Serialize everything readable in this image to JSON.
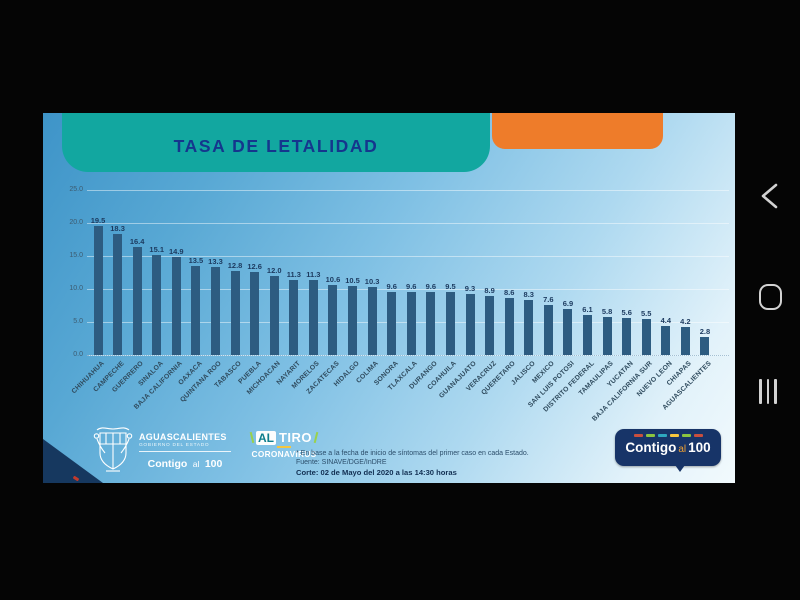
{
  "chart_data": {
    "type": "bar",
    "title": "TASA DE LETALIDAD",
    "xlabel": "",
    "ylabel": "",
    "ylim": [
      0,
      25
    ],
    "yticks": [
      0.0,
      5.0,
      10.0,
      15.0,
      20.0,
      25.0
    ],
    "grid": true,
    "legend": false,
    "bar_color": "#2d5c81",
    "categories": [
      "CHIHUAHUA",
      "CAMPECHE",
      "GUERRERO",
      "SINALOA",
      "BAJA CALIFORNIA",
      "OAXACA",
      "QUINTANA ROO",
      "TABASCO",
      "PUEBLA",
      "MICHOACAN",
      "NAYARIT",
      "MORELOS",
      "ZACATECAS",
      "HIDALGO",
      "COLIMA",
      "SONORA",
      "TLAXCALA",
      "DURANGO",
      "COAHUILA",
      "GUANAJUATO",
      "VERACRUZ",
      "QUERETARO",
      "JALISCO",
      "MEXICO",
      "SAN LUIS POTOSI",
      "DISTRITO FEDERAL",
      "TAMAULIPAS",
      "YUCATAN",
      "BAJA CALIFORNIA SUR",
      "NUEVO LEON",
      "CHIAPAS",
      "AGUASCALIENTES"
    ],
    "values": [
      19.5,
      18.3,
      16.4,
      15.1,
      14.9,
      13.5,
      13.3,
      12.8,
      12.6,
      12.0,
      11.3,
      11.3,
      10.6,
      10.5,
      10.3,
      9.6,
      9.6,
      9.6,
      9.5,
      9.3,
      8.9,
      8.6,
      8.3,
      7.6,
      6.9,
      6.1,
      5.8,
      5.6,
      5.5,
      4.4,
      4.2,
      2.8
    ]
  },
  "slide": {
    "footer": {
      "gov": {
        "name": "AGUASCALIENTES",
        "subtitle": "GOBIERNO DEL ESTADO",
        "slogan_contigo": "Contigo",
        "slogan_al": "al",
        "slogan_100": "100"
      },
      "altiro": {
        "al": "AL",
        "tiro": "TIRO",
        "line2": "CORONAVIRUS"
      },
      "note1": "* En base a la fecha de inicio de síntomas del primer caso en cada Estado.",
      "note2": "Fuente: SINAVE/DGE/InDRE",
      "note3": "Corte: 02 de Mayo del 2020 a las 14:30 horas",
      "badge": {
        "contigo": "Contigo",
        "al": "al",
        "hundred": "100",
        "dashes": [
          "#c94f3e",
          "#8bc540",
          "#2ea8bf",
          "#f5c63f",
          "#8bc540",
          "#c94f3e"
        ]
      }
    }
  },
  "colors": {
    "banner_teal": "#12a7a0",
    "accent_orange": "#ee7c2a",
    "bar_blue": "#2d5c81",
    "title_navy": "#15368d",
    "badge_navy": "#173468",
    "background_black": "#050505"
  },
  "icons": {
    "back": "back-chevron",
    "home": "home-outline",
    "recents": "recent-apps-lines"
  }
}
